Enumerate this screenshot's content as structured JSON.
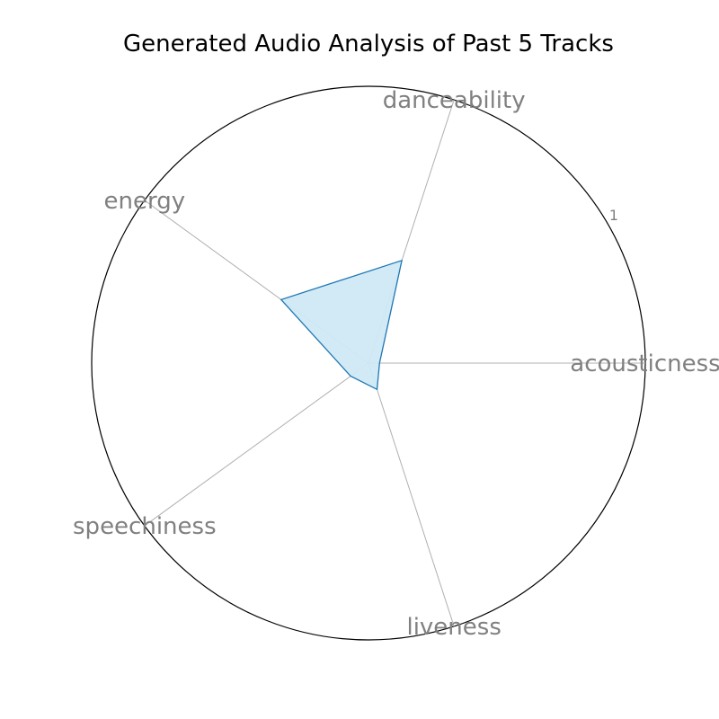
{
  "chart_data": {
    "type": "radar",
    "title": "Generated Audio Analysis of Past 5 Tracks",
    "axes": [
      "acousticness",
      "danceability",
      "energy",
      "speechiness",
      "liveness"
    ],
    "values": {
      "acousticness": 0.04,
      "danceability": 0.39,
      "energy": 0.39,
      "speechiness": 0.08,
      "liveness": 0.1
    },
    "rlim": [
      0,
      1
    ],
    "r_ticks": [
      "1"
    ],
    "colors": {
      "fill": "#cfe9f6",
      "line": "#1f77b4",
      "spoke": "#b0b0b0",
      "frame": "#000000"
    }
  }
}
